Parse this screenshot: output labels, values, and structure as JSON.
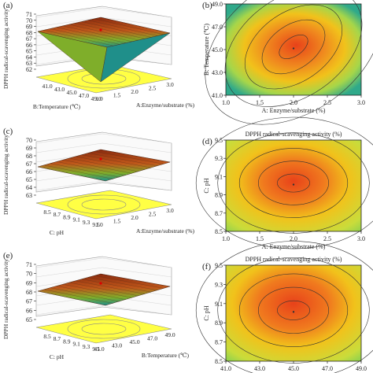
{
  "panels": [
    {
      "id": "a",
      "label": "(a)",
      "kind": "surface",
      "zlabel": "DPPH radical-scavenging activity",
      "zticks": [
        "71",
        "70",
        "69",
        "68",
        "67",
        "66",
        "65",
        "64",
        "63",
        "62"
      ],
      "xaxis": {
        "label": "A:Enzyme/substrate (%)",
        "ticks": [
          "1.0",
          "1.5",
          "2.0",
          "2.5",
          "3.0"
        ]
      },
      "yaxis": {
        "label": "B:Temperature (℃)",
        "ticks": [
          "41.0",
          "43.0",
          "45.0",
          "47.0",
          "49.0"
        ]
      }
    },
    {
      "id": "b",
      "label": "(b)",
      "kind": "contour",
      "title": "",
      "xaxis": {
        "label": "A: Enzyme/substrate (%)",
        "ticks": [
          "1.0",
          "1.5",
          "2.0",
          "2.5",
          "3.0"
        ]
      },
      "yaxis": {
        "label": "B: Temperature (℃)",
        "ticks": [
          "41.0",
          "43.0",
          "45.0",
          "47.0",
          "49.0"
        ]
      }
    },
    {
      "id": "c",
      "label": "(c)",
      "kind": "surface",
      "zlabel": "DPPH radical-scavenging activity",
      "zticks": [
        "70",
        "69",
        "68",
        "67",
        "66",
        "65",
        "64",
        "63"
      ],
      "xaxis": {
        "label": "A:Enzyme/substrate (%)",
        "ticks": [
          "1.0",
          "1.5",
          "2.0",
          "2.5",
          "3.0"
        ]
      },
      "yaxis": {
        "label": "C: pH",
        "ticks": [
          "8.5",
          "8.7",
          "8.9",
          "9.1",
          "9.3",
          "9.5"
        ]
      }
    },
    {
      "id": "d",
      "label": "(d)",
      "kind": "contour",
      "title": "DPPH radical-scavenging activity (%)",
      "xaxis": {
        "label": "A: Enzyme/substrate (%)",
        "ticks": [
          "1.0",
          "1.5",
          "2.0",
          "2.5",
          "3.0"
        ]
      },
      "yaxis": {
        "label": "C: pH",
        "ticks": [
          "8.5",
          "8.7",
          "8.9",
          "9.1",
          "9.3",
          "9.5"
        ]
      }
    },
    {
      "id": "e",
      "label": "(e)",
      "kind": "surface",
      "zlabel": "DPPH radical-scavenging activity",
      "zticks": [
        "71",
        "70",
        "69",
        "68",
        "67",
        "66",
        "65"
      ],
      "xaxis": {
        "label": "B:Temperature (℃)",
        "ticks": [
          "41.0",
          "43.0",
          "45.0",
          "47.0",
          "49.0"
        ]
      },
      "yaxis": {
        "label": "C: pH",
        "ticks": [
          "8.5",
          "8.7",
          "8.9",
          "9.1",
          "9.3",
          "9.5"
        ]
      }
    },
    {
      "id": "f",
      "label": "(f)",
      "kind": "contour",
      "title": "DPPH radical-scavenging activity (%)",
      "xaxis": {
        "label": "B: Temperature (℃)",
        "ticks": [
          "41.0",
          "43.0",
          "45.0",
          "47.0",
          "49.0"
        ]
      },
      "yaxis": {
        "label": "C: pH",
        "ticks": [
          "8.5",
          "8.7",
          "8.9",
          "9.1",
          "9.3",
          "9.5"
        ]
      }
    }
  ],
  "chart_data": [
    {
      "type": "surface",
      "panel": "a",
      "x_factor": "Enzyme/substrate",
      "y_factor": "Temperature",
      "z": "DPPH radical-scavenging activity",
      "zlim": [
        62,
        71
      ],
      "xlim": [
        1.0,
        3.0
      ],
      "ylim": [
        41.0,
        49.0
      ]
    },
    {
      "type": "contour",
      "panel": "b",
      "xlim": [
        1.0,
        3.0
      ],
      "ylim": [
        41.0,
        49.0
      ],
      "center": [
        2.0,
        45.0
      ]
    },
    {
      "type": "surface",
      "panel": "c",
      "x_factor": "Enzyme/substrate",
      "y_factor": "pH",
      "z": "DPPH radical-scavenging activity",
      "zlim": [
        63,
        70
      ],
      "xlim": [
        1.0,
        3.0
      ],
      "ylim": [
        8.5,
        9.5
      ]
    },
    {
      "type": "contour",
      "panel": "d",
      "xlim": [
        1.0,
        3.0
      ],
      "ylim": [
        8.5,
        9.5
      ],
      "center": [
        2.0,
        9.0
      ]
    },
    {
      "type": "surface",
      "panel": "e",
      "x_factor": "Temperature",
      "y_factor": "pH",
      "z": "DPPH radical-scavenging activity",
      "zlim": [
        65,
        71
      ],
      "xlim": [
        41.0,
        49.0
      ],
      "ylim": [
        8.5,
        9.5
      ]
    },
    {
      "type": "contour",
      "panel": "f",
      "xlim": [
        41.0,
        49.0
      ],
      "ylim": [
        8.5,
        9.5
      ],
      "center": [
        45.0,
        9.0
      ]
    }
  ],
  "colors": {
    "peak": "#e8421a",
    "mid": "#f1c21b",
    "low": "#a6d64a",
    "min": "#2fa98a",
    "plane": "#ffff44",
    "mesh": "#4a2a1a"
  }
}
